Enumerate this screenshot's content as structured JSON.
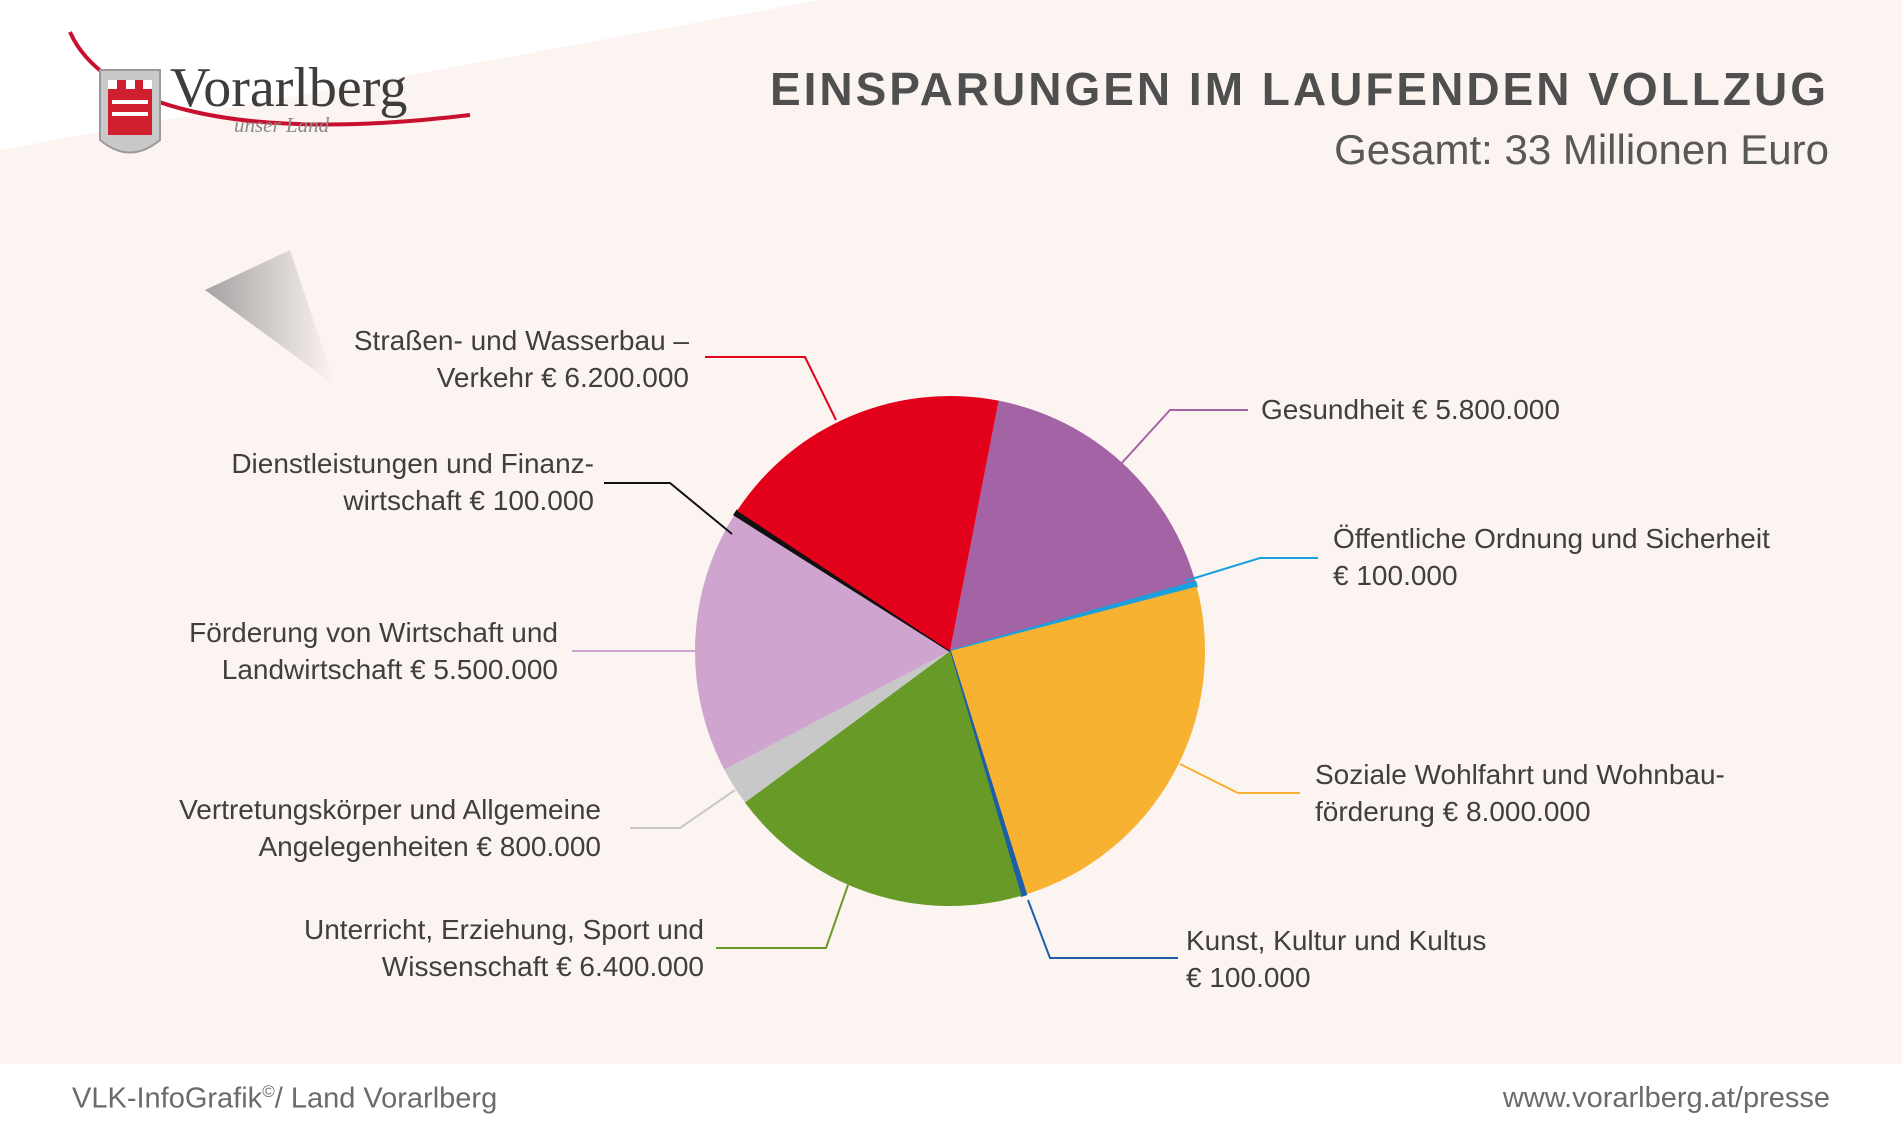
{
  "logo": {
    "name": "Vorarlberg",
    "tagline": "unser Land"
  },
  "header": {
    "title": "EINSPARUNGEN IM LAUFENDEN VOLLZUG",
    "subtitle": "Gesamt: 33 Millionen Euro"
  },
  "footer": {
    "left": "VLK-InfoGrafik",
    "left_sup": "©",
    "left_suffix": "/ Land Vorarlberg",
    "right": "www.vorarlberg.at/presse"
  },
  "chart_data": {
    "type": "pie",
    "title": "EINSPARUNGEN IM LAUFENDEN VOLLZUG",
    "subtitle": "Gesamt: 33 Millionen Euro",
    "unit": "€",
    "slices": [
      {
        "label": "Gesundheit",
        "value": 5800000,
        "color": "#a463a5",
        "text": [
          "Gesundheit € 5.800.000"
        ]
      },
      {
        "label": "Öffentliche Ordnung und Sicherheit",
        "value": 100000,
        "color": "#1aa0dc",
        "text": [
          "Öffentliche Ordnung und Sicherheit",
          "€ 100.000"
        ]
      },
      {
        "label": "Soziale Wohlfahrt und Wohnbauförderung",
        "value": 8000000,
        "color": "#f8b232",
        "text": [
          "Soziale Wohlfahrt und Wohnbau-",
          "förderung € 8.000.000"
        ]
      },
      {
        "label": "Kunst, Kultur und Kultus",
        "value": 100000,
        "color": "#1c5fa8",
        "text": [
          "Kunst, Kultur und Kultus",
          "€ 100.000"
        ]
      },
      {
        "label": "Unterricht, Erziehung, Sport und Wissenschaft",
        "value": 6400000,
        "color": "#679a27",
        "text": [
          "Unterricht, Erziehung, Sport und",
          "Wissenschaft € 6.400.000"
        ]
      },
      {
        "label": "Vertretungskörper und Allgemeine Angelegenheiten",
        "value": 800000,
        "color": "#c8c8c8",
        "text": [
          "Vertretungskörper und Allgemeine",
          "Angelegenheiten € 800.000"
        ]
      },
      {
        "label": "Förderung von Wirtschaft und Landwirtschaft",
        "value": 5500000,
        "color": "#cfa5cf",
        "text": [
          "Förderung von Wirtschaft und",
          "Landwirtschaft € 5.500.000"
        ]
      },
      {
        "label": "Dienstleistungen und Finanzwirtschaft",
        "value": 100000,
        "color": "#111111",
        "text": [
          "Dienstleistungen und Finanz-",
          "wirtschaft € 100.000"
        ]
      },
      {
        "label": "Straßen- und Wasserbau – Verkehr",
        "value": 6200000,
        "color": "#e2001a",
        "text": [
          "Straßen- und Wasserbau –",
          "Verkehr € 6.200.000"
        ]
      }
    ]
  }
}
